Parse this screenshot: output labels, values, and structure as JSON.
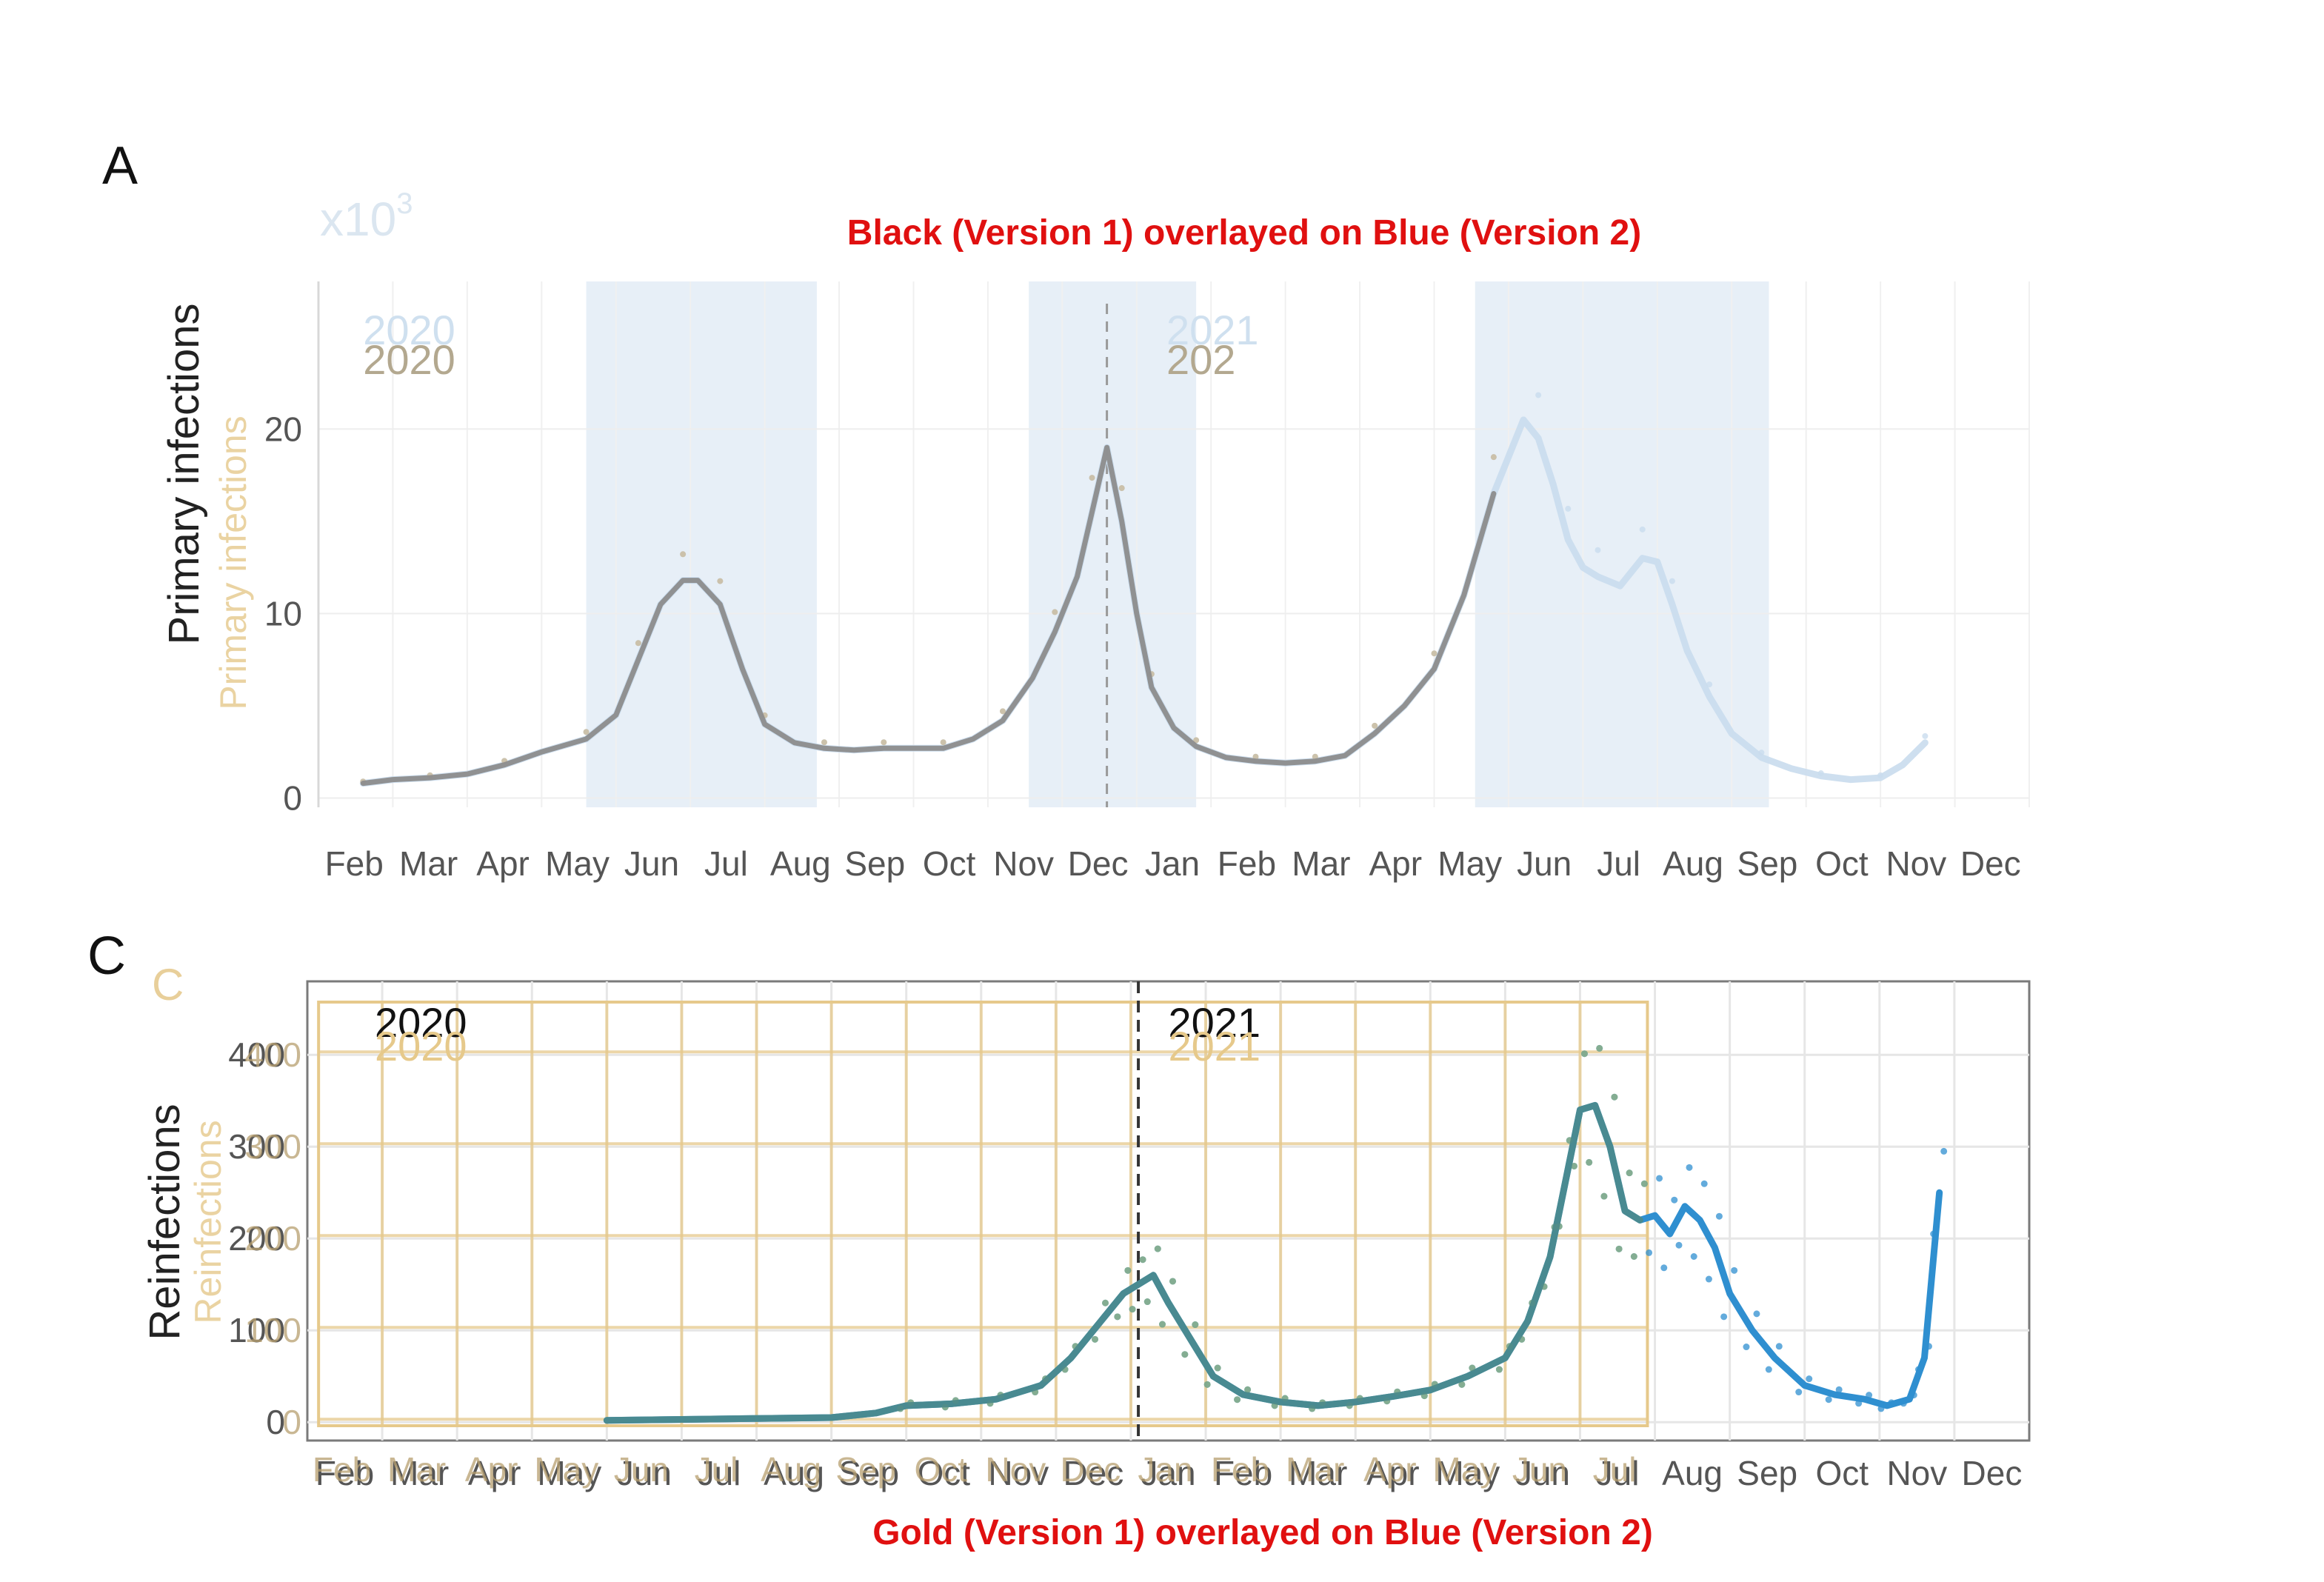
{
  "figure": {
    "panel_a_label": "A",
    "panel_c_label": "C",
    "panel_c_ghost_label": "C",
    "caption_top": "Black (Version 1) overlayed on Blue (Version 2)",
    "caption_bottom": "Gold (Version 1) overlayed on Blue (Version 2)"
  },
  "colors": {
    "v1_black": "#8c8c8c",
    "v2_blue_light": "#c9dced",
    "v2_blue": "#2f8fd0",
    "v1_gold": "#e6c98b",
    "v1_teal": "#4d8a8a",
    "season_band": "#e7eff7",
    "grid": "#e6e6e6",
    "caption": "#e01010"
  },
  "chart_data": [
    {
      "id": "A",
      "type": "line",
      "ylabel": "Primary infections",
      "ylabel_ghost": "Primary infections",
      "multiplier_label": "x10",
      "multiplier_exp": "3",
      "x_tick_labels": [
        "Feb",
        "Mar",
        "Apr",
        "May",
        "Jun",
        "Jul",
        "Aug",
        "Sep",
        "Oct",
        "Nov",
        "Dec",
        "Jan",
        "Feb",
        "Mar",
        "Apr",
        "May",
        "Jun",
        "Jul",
        "Aug",
        "Sep",
        "Oct",
        "Nov",
        "Dec"
      ],
      "x_range": [
        0,
        23
      ],
      "ylim": [
        -0.5,
        28
      ],
      "y_ticks": [
        0,
        10,
        20
      ],
      "year_labels": [
        {
          "text": "2020",
          "x": 0.6,
          "variant": "v2"
        },
        {
          "text": "2020",
          "x": 0.6,
          "variant": "v1"
        },
        {
          "text": "2021",
          "x": 11.4,
          "variant": "v2"
        },
        {
          "text": "202",
          "x": 11.4,
          "variant": "v1"
        }
      ],
      "year_divider_x": 10.6,
      "season_bands": [
        [
          3.6,
          6.7
        ],
        [
          9.55,
          11.8
        ],
        [
          15.55,
          19.5
        ]
      ],
      "series": [
        {
          "name": "Version 2",
          "color_key": "v2_blue_light",
          "x": [
            0.6,
            1.0,
            1.5,
            2.0,
            2.5,
            3.0,
            3.6,
            4.0,
            4.3,
            4.6,
            4.9,
            5.1,
            5.4,
            5.7,
            6.0,
            6.4,
            6.8,
            7.2,
            7.6,
            8.0,
            8.4,
            8.8,
            9.2,
            9.6,
            9.9,
            10.2,
            10.4,
            10.6,
            10.8,
            11.0,
            11.2,
            11.5,
            11.8,
            12.2,
            12.6,
            13.0,
            13.4,
            13.8,
            14.2,
            14.6,
            15.0,
            15.4,
            15.8,
            16.2,
            16.4,
            16.6,
            16.8,
            17.0,
            17.2,
            17.5,
            17.8,
            18.0,
            18.2,
            18.4,
            18.7,
            19.0,
            19.4,
            19.8,
            20.2,
            20.6,
            21.0,
            21.3,
            21.6
          ],
          "y": [
            0.8,
            1.0,
            1.1,
            1.3,
            1.8,
            2.5,
            3.2,
            4.5,
            7.5,
            10.5,
            11.8,
            11.8,
            10.5,
            7.0,
            4.0,
            3.0,
            2.7,
            2.6,
            2.7,
            2.7,
            2.7,
            3.2,
            4.2,
            6.5,
            9.0,
            12.0,
            15.5,
            19.0,
            15.0,
            10.0,
            6.0,
            3.8,
            2.8,
            2.2,
            2.0,
            1.9,
            2.0,
            2.3,
            3.5,
            5.0,
            7.0,
            11.0,
            16.5,
            20.5,
            19.5,
            17.0,
            14.0,
            12.5,
            12.0,
            11.5,
            13.0,
            12.8,
            10.5,
            8.0,
            5.5,
            3.5,
            2.2,
            1.6,
            1.2,
            1.0,
            1.1,
            1.8,
            3.0
          ]
        },
        {
          "name": "Version 1",
          "color_key": "v1_black",
          "x": [
            0.6,
            1.0,
            1.5,
            2.0,
            2.5,
            3.0,
            3.6,
            4.0,
            4.3,
            4.6,
            4.9,
            5.1,
            5.4,
            5.7,
            6.0,
            6.4,
            6.8,
            7.2,
            7.6,
            8.0,
            8.4,
            8.8,
            9.2,
            9.6,
            9.9,
            10.2,
            10.4,
            10.6,
            10.8,
            11.0,
            11.2,
            11.5,
            11.8,
            12.2,
            12.6,
            13.0,
            13.4,
            13.8,
            14.2,
            14.6,
            15.0,
            15.4,
            15.8
          ],
          "y": [
            0.8,
            1.0,
            1.1,
            1.3,
            1.8,
            2.5,
            3.2,
            4.5,
            7.5,
            10.5,
            11.8,
            11.8,
            10.5,
            7.0,
            4.0,
            3.0,
            2.7,
            2.6,
            2.7,
            2.7,
            2.7,
            3.2,
            4.2,
            6.5,
            9.0,
            12.0,
            15.5,
            19.0,
            15.0,
            10.0,
            6.0,
            3.8,
            2.8,
            2.2,
            2.0,
            1.9,
            2.0,
            2.3,
            3.5,
            5.0,
            7.0,
            11.0,
            16.5
          ]
        }
      ]
    },
    {
      "id": "C",
      "type": "line",
      "ylabel": "Reinfections",
      "ylabel_ghost": "Reinfections",
      "x_tick_labels": [
        "Feb",
        "Mar",
        "Apr",
        "May",
        "Jun",
        "Jul",
        "Aug",
        "Sep",
        "Oct",
        "Nov",
        "Dec",
        "Jan",
        "Feb",
        "Mar",
        "Apr",
        "May",
        "Jun",
        "Jul",
        "Aug",
        "Sep",
        "Oct",
        "Nov",
        "Dec"
      ],
      "x_range": [
        0,
        23
      ],
      "ylim": [
        -20,
        480
      ],
      "y_ticks": [
        0,
        100,
        200,
        300,
        400
      ],
      "year_labels": [
        {
          "text": "2020",
          "x": 0.9,
          "variant": "main"
        },
        {
          "text": "2020",
          "x": 0.9,
          "variant": "ghost"
        },
        {
          "text": "2021",
          "x": 11.5,
          "variant": "main"
        },
        {
          "text": "2021",
          "x": 11.5,
          "variant": "ghost"
        }
      ],
      "year_divider_x": 11.1,
      "v1_extent_x": [
        0.15,
        17.9
      ],
      "series": [
        {
          "name": "Version 2",
          "color_key": "v2_blue",
          "x": [
            4.0,
            5.0,
            6.0,
            7.0,
            7.6,
            8.0,
            8.6,
            9.2,
            9.8,
            10.2,
            10.6,
            10.9,
            11.1,
            11.3,
            11.5,
            11.8,
            12.1,
            12.5,
            13.0,
            13.5,
            14.0,
            14.5,
            15.0,
            15.5,
            16.0,
            16.3,
            16.6,
            16.8,
            17.0,
            17.2,
            17.4,
            17.6,
            17.8,
            18.0,
            18.2,
            18.4,
            18.6,
            18.8,
            19.0,
            19.3,
            19.6,
            20.0,
            20.4,
            20.8,
            21.1,
            21.4,
            21.6,
            21.8
          ],
          "y": [
            2,
            3,
            4,
            5,
            10,
            18,
            20,
            25,
            40,
            70,
            110,
            140,
            150,
            160,
            130,
            90,
            50,
            30,
            22,
            18,
            22,
            28,
            35,
            50,
            70,
            110,
            180,
            260,
            340,
            345,
            300,
            230,
            220,
            225,
            205,
            235,
            220,
            190,
            140,
            100,
            70,
            40,
            30,
            25,
            18,
            25,
            70,
            250
          ]
        },
        {
          "name": "Version 1",
          "color_key": "v1_teal",
          "x": [
            4.0,
            5.0,
            6.0,
            7.0,
            7.6,
            8.0,
            8.6,
            9.2,
            9.8,
            10.2,
            10.6,
            10.9,
            11.1,
            11.3,
            11.5,
            11.8,
            12.1,
            12.5,
            13.0,
            13.5,
            14.0,
            14.5,
            15.0,
            15.5,
            16.0,
            16.3,
            16.6,
            16.8,
            17.0,
            17.2,
            17.4,
            17.6,
            17.8
          ],
          "y": [
            2,
            3,
            4,
            5,
            10,
            18,
            20,
            25,
            40,
            70,
            110,
            140,
            150,
            160,
            130,
            90,
            50,
            30,
            22,
            18,
            22,
            28,
            35,
            50,
            70,
            110,
            180,
            260,
            340,
            345,
            300,
            230,
            220
          ]
        }
      ]
    }
  ]
}
